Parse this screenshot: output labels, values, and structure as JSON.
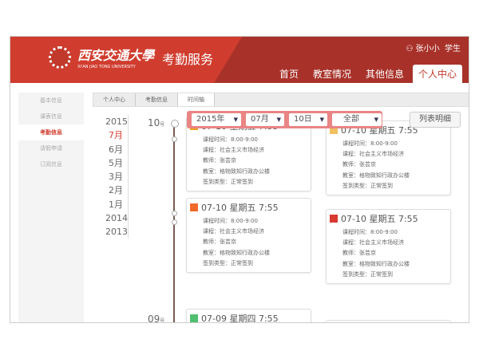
{
  "header": {
    "university_cn": "西安交通大學",
    "university_en": "XI'AN JIAO TONG UNIVERSITY",
    "service": "考勤服务",
    "user": "张小小",
    "role": "学生"
  },
  "nav": [
    "首页",
    "教室情况",
    "其他信息",
    "个人中心"
  ],
  "sidebar": [
    "基本信息",
    "课表信息",
    "考勤信息",
    "请假申请",
    "订阅信息"
  ],
  "breadcrumb": [
    "个人中心",
    "考勤信息",
    "时间轴"
  ],
  "years": [
    "2015",
    "7月",
    "6月",
    "5月",
    "3月",
    "2月",
    "1月",
    "2014",
    "2013"
  ],
  "filter": {
    "year": "2015年",
    "month": "07月",
    "day": "10日",
    "type": "全部"
  },
  "list_button": "列表明细",
  "days": [
    {
      "num": "10",
      "unit": "号"
    },
    {
      "num": "09",
      "unit": "号"
    }
  ],
  "colors": {
    "brand": "#d03d2f",
    "filter": "#e98584"
  },
  "cards": [
    {
      "title": "07-10 星期五 7:55",
      "icon_color": "#f0a020",
      "lines": [
        "课程时间：8:00-9:00",
        "课程：社会主义市场经济",
        "教师：张芸京",
        "教室：格物致知行政办公楼",
        "签到类型：正常签到"
      ]
    },
    {
      "title": "07-10 星期五 7:55",
      "icon_color": "#f0c060",
      "lines": [
        "课程时间：8:00-9:00",
        "课程：社会主义市场经济",
        "教师：张芸京",
        "教室：格物致知行政办公楼",
        "签到类型：正常签到"
      ]
    },
    {
      "title": "07-10 星期五 7:55",
      "icon_color": "#f06a2a",
      "lines": [
        "课程时间：8:00-9:00",
        "课程：社会主义市场经济",
        "教师：张芸京",
        "教室：格物致知行政办公楼",
        "签到类型：正常签到"
      ]
    },
    {
      "title": "07-10 星期五 7:55",
      "icon_color": "#d83a30",
      "lines": [
        "课程时间：8:00-9:00",
        "课程：社会主义市场经济",
        "教师：张芸京",
        "教室：格物致知行政办公楼",
        "签到类型：正常签到"
      ]
    },
    {
      "title": "07-09 星期四 7:55",
      "icon_color": "#50c070",
      "lines": []
    }
  ]
}
